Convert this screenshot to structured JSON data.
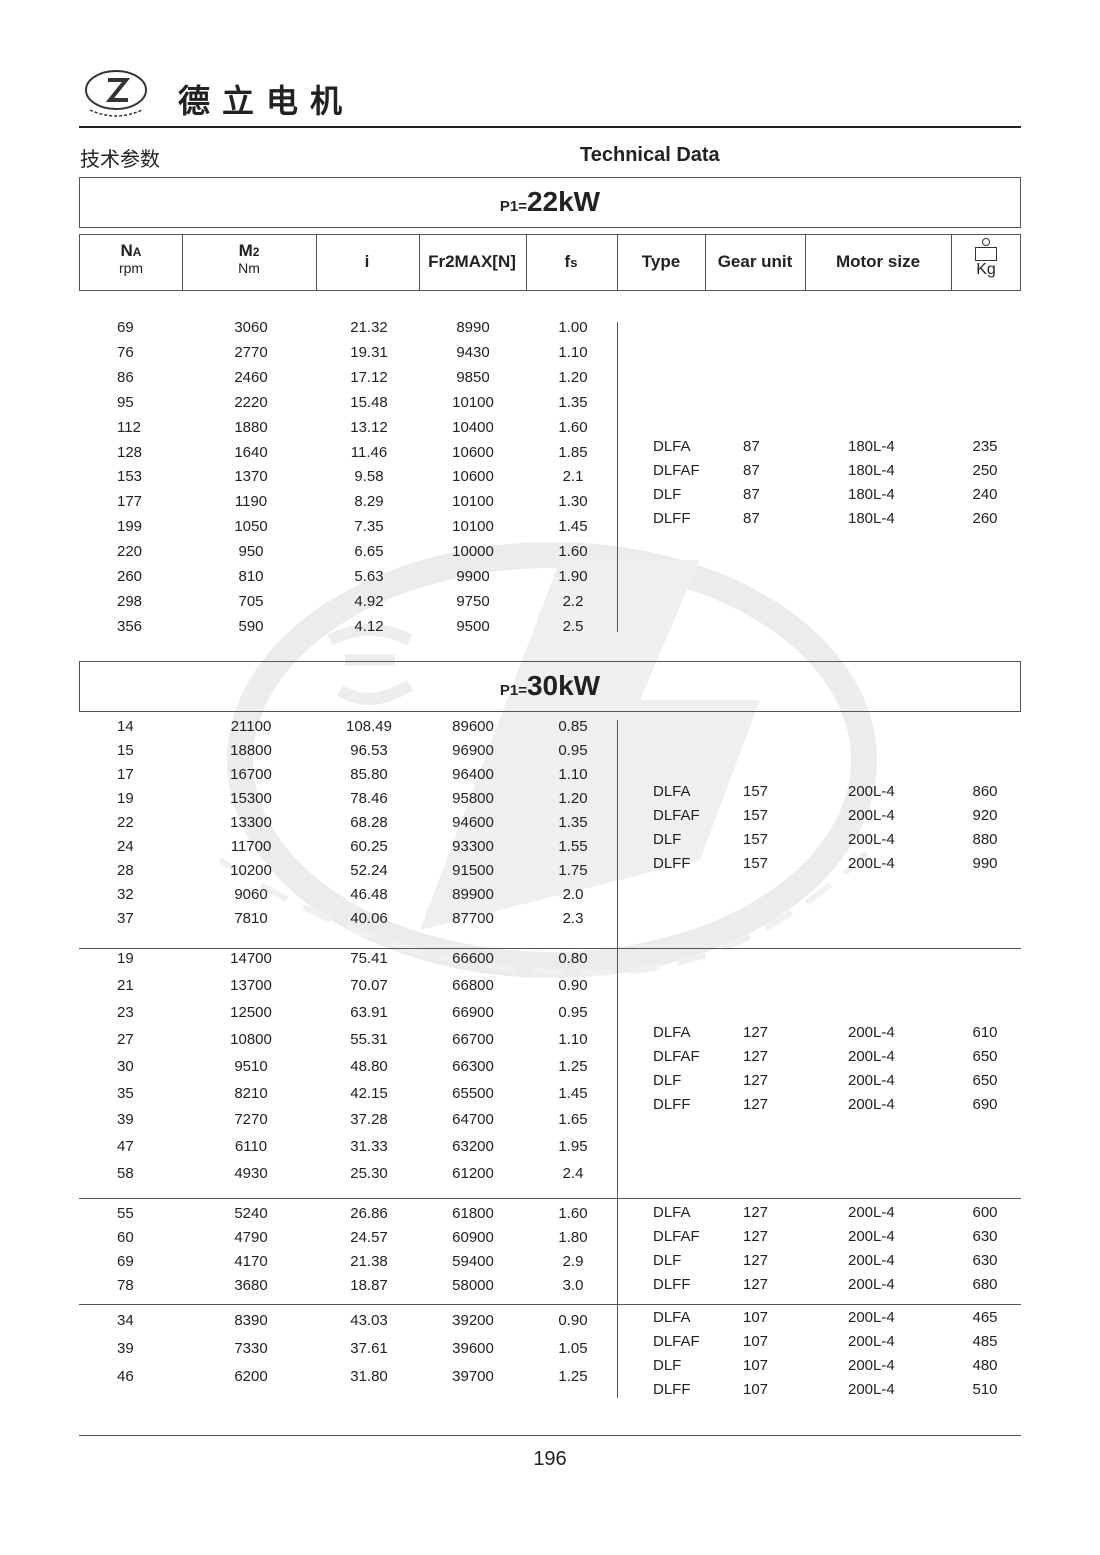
{
  "header": {
    "brand_cn": "德立电机",
    "logo_text": "De Li Gear Motor",
    "logo_cn": "德立",
    "section_cn": "技术参数",
    "section_en": "Technical Data"
  },
  "watermark": {
    "text": "De Li Gear Motor",
    "cn": "德立"
  },
  "columns": {
    "na": "NA",
    "na_sub": "A",
    "na_unit": "rpm",
    "m2": "M2",
    "m2_unit": "Nm",
    "i": "i",
    "fr": "Fr2MAX[N]",
    "fs": "fs",
    "type": "Type",
    "gear_unit": "Gear unit",
    "motor_size": "Motor size",
    "kg": "Kg",
    "kg_icon": "weight-icon"
  },
  "sections": [
    {
      "power_prefix": "P1=",
      "power": "22kW",
      "groups": [
        {
          "rows": [
            [
              "69",
              "3060",
              "21.32",
              "8990",
              "1.00"
            ],
            [
              "76",
              "2770",
              "19.31",
              "9430",
              "1.10"
            ],
            [
              "86",
              "2460",
              "17.12",
              "9850",
              "1.20"
            ],
            [
              "95",
              "2220",
              "15.48",
              "10100",
              "1.35"
            ],
            [
              "112",
              "1880",
              "13.12",
              "10400",
              "1.60"
            ],
            [
              "128",
              "1640",
              "11.46",
              "10600",
              "1.85"
            ],
            [
              "153",
              "1370",
              "9.58",
              "10600",
              "2.1"
            ],
            [
              "177",
              "1190",
              "8.29",
              "10100",
              "1.30"
            ],
            [
              "199",
              "1050",
              "7.35",
              "10100",
              "1.45"
            ],
            [
              "220",
              "950",
              "6.65",
              "10000",
              "1.60"
            ],
            [
              "260",
              "810",
              "5.63",
              "9900",
              "1.90"
            ],
            [
              "298",
              "705",
              "4.92",
              "9750",
              "2.2"
            ],
            [
              "356",
              "590",
              "4.12",
              "9500",
              "2.5"
            ]
          ],
          "types": [
            [
              "DLFA",
              "87",
              "180L-4",
              "235"
            ],
            [
              "DLFAF",
              "87",
              "180L-4",
              "250"
            ],
            [
              "DLF",
              "87",
              "180L-4",
              "240"
            ],
            [
              "DLFF",
              "87",
              "180L-4",
              "260"
            ]
          ]
        }
      ]
    },
    {
      "power_prefix": "P1=",
      "power": "30kW",
      "groups": [
        {
          "rows": [
            [
              "14",
              "21100",
              "108.49",
              "89600",
              "0.85"
            ],
            [
              "15",
              "18800",
              "96.53",
              "96900",
              "0.95"
            ],
            [
              "17",
              "16700",
              "85.80",
              "96400",
              "1.10"
            ],
            [
              "19",
              "15300",
              "78.46",
              "95800",
              "1.20"
            ],
            [
              "22",
              "13300",
              "68.28",
              "94600",
              "1.35"
            ],
            [
              "24",
              "11700",
              "60.25",
              "93300",
              "1.55"
            ],
            [
              "28",
              "10200",
              "52.24",
              "91500",
              "1.75"
            ],
            [
              "32",
              "9060",
              "46.48",
              "89900",
              "2.0"
            ],
            [
              "37",
              "7810",
              "40.06",
              "87700",
              "2.3"
            ]
          ],
          "types": [
            [
              "DLFA",
              "157",
              "200L-4",
              "860"
            ],
            [
              "DLFAF",
              "157",
              "200L-4",
              "920"
            ],
            [
              "DLF",
              "157",
              "200L-4",
              "880"
            ],
            [
              "DLFF",
              "157",
              "200L-4",
              "990"
            ]
          ]
        },
        {
          "rows": [
            [
              "19",
              "14700",
              "75.41",
              "66600",
              "0.80"
            ],
            [
              "21",
              "13700",
              "70.07",
              "66800",
              "0.90"
            ],
            [
              "23",
              "12500",
              "63.91",
              "66900",
              "0.95"
            ],
            [
              "27",
              "10800",
              "55.31",
              "66700",
              "1.10"
            ],
            [
              "30",
              "9510",
              "48.80",
              "66300",
              "1.25"
            ],
            [
              "35",
              "8210",
              "42.15",
              "65500",
              "1.45"
            ],
            [
              "39",
              "7270",
              "37.28",
              "64700",
              "1.65"
            ],
            [
              "47",
              "6110",
              "31.33",
              "63200",
              "1.95"
            ],
            [
              "58",
              "4930",
              "25.30",
              "61200",
              "2.4"
            ]
          ],
          "types": [
            [
              "DLFA",
              "127",
              "200L-4",
              "610"
            ],
            [
              "DLFAF",
              "127",
              "200L-4",
              "650"
            ],
            [
              "DLF",
              "127",
              "200L-4",
              "650"
            ],
            [
              "DLFF",
              "127",
              "200L-4",
              "690"
            ]
          ]
        },
        {
          "rows": [
            [
              "55",
              "5240",
              "26.86",
              "61800",
              "1.60"
            ],
            [
              "60",
              "4790",
              "24.57",
              "60900",
              "1.80"
            ],
            [
              "69",
              "4170",
              "21.38",
              "59400",
              "2.9"
            ],
            [
              "78",
              "3680",
              "18.87",
              "58000",
              "3.0"
            ]
          ],
          "types": [
            [
              "DLFA",
              "127",
              "200L-4",
              "600"
            ],
            [
              "DLFAF",
              "127",
              "200L-4",
              "630"
            ],
            [
              "DLF",
              "127",
              "200L-4",
              "630"
            ],
            [
              "DLFF",
              "127",
              "200L-4",
              "680"
            ]
          ]
        },
        {
          "rows": [
            [
              "34",
              "8390",
              "43.03",
              "39200",
              "0.90"
            ],
            [
              "39",
              "7330",
              "37.61",
              "39600",
              "1.05"
            ],
            [
              "46",
              "6200",
              "31.80",
              "39700",
              "1.25"
            ]
          ],
          "types": [
            [
              "DLFA",
              "107",
              "200L-4",
              "465"
            ],
            [
              "DLFAF",
              "107",
              "200L-4",
              "485"
            ],
            [
              "DLF",
              "107",
              "200L-4",
              "480"
            ],
            [
              "DLFF",
              "107",
              "200L-4",
              "510"
            ]
          ]
        }
      ]
    }
  ],
  "footer": {
    "page_number": "196"
  },
  "colors": {
    "text": "#222222",
    "rule": "#555555",
    "watermark": "#e6e6e6"
  }
}
